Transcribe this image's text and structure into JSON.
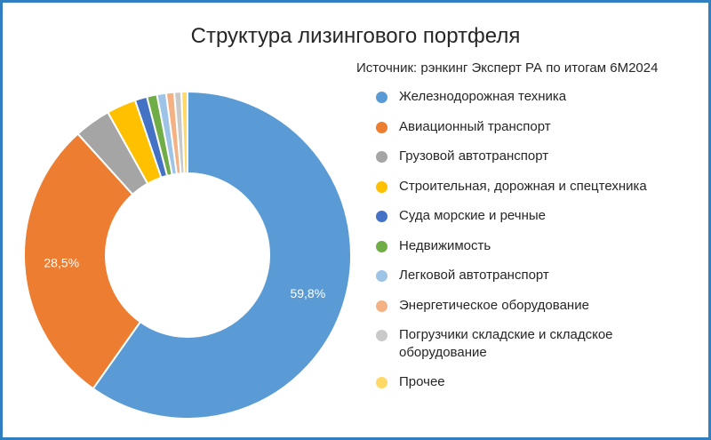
{
  "chart_data": {
    "type": "pie",
    "title": "Структура лизингового портфеля",
    "subtitle": "Источник: рэнкинг Эксперт РА по итогам 6М2024",
    "legend_position": "right",
    "slices": [
      {
        "label": "Железнодорожная техника",
        "value": 59.8,
        "color": "#5b9bd5",
        "data_label": "59,8%"
      },
      {
        "label": "Авиационный транспорт",
        "value": 28.5,
        "color": "#ed7d31",
        "data_label": "28,5%"
      },
      {
        "label": "Грузовой автотранспорт",
        "value": 3.6,
        "color": "#a5a5a5"
      },
      {
        "label": "Строительная, дорожная и спецтехника",
        "value": 2.9,
        "color": "#ffc000"
      },
      {
        "label": "Суда морские и речные",
        "value": 1.2,
        "color": "#4472c4"
      },
      {
        "label": "Недвижимость",
        "value": 1.0,
        "color": "#70ad47"
      },
      {
        "label": "Легковой автотранспорт",
        "value": 0.9,
        "color": "#9dc3e6"
      },
      {
        "label": "Энергетическое оборудование",
        "value": 0.8,
        "color": "#f4b183"
      },
      {
        "label": "Погрузчики складские и складское оборудование",
        "value": 0.7,
        "color": "#c9c9c9"
      },
      {
        "label": "Прочее",
        "value": 0.6,
        "color": "#ffd966"
      }
    ]
  }
}
